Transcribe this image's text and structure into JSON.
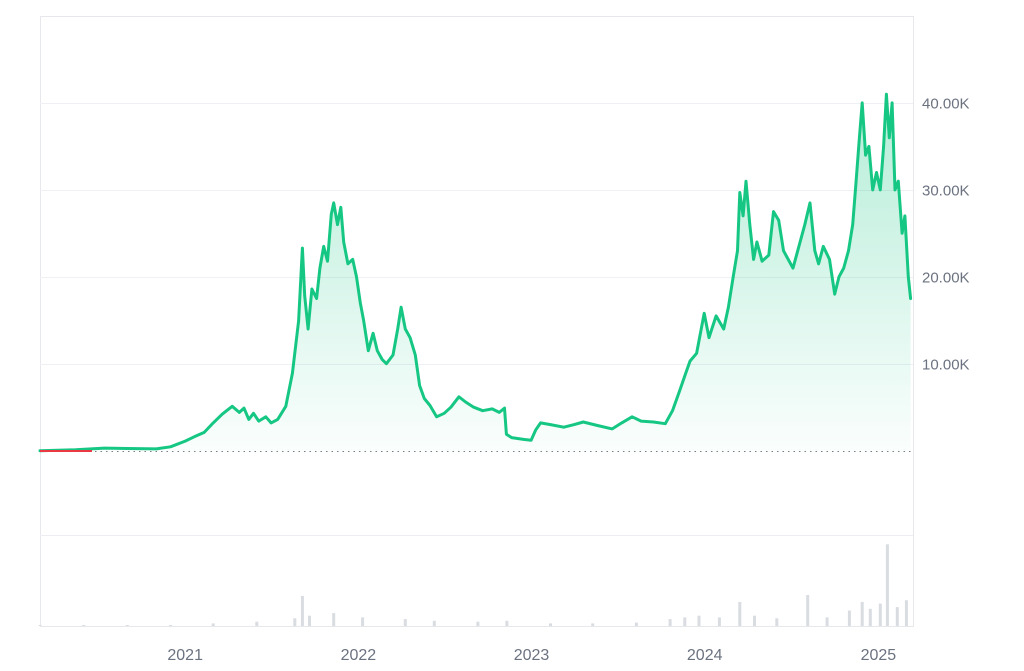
{
  "chart_data": {
    "type": "area",
    "title": "",
    "xlabel": "",
    "ylabel": "",
    "x_ticks": [
      "2021",
      "2022",
      "2023",
      "2024",
      "2025"
    ],
    "y_ticks": [
      "10.00K",
      "20.00K",
      "30.00K",
      "40.00K"
    ],
    "y_tick_values": [
      10000,
      20000,
      30000,
      40000
    ],
    "ylim": [
      -9700,
      50000
    ],
    "x_range": [
      "2020-03-01",
      "2025-03-15"
    ],
    "baseline_value": 0,
    "grid": "horizontal",
    "series": [
      {
        "type": "area",
        "color": "#16c784",
        "points": [
          [
            "2020-03-01",
            0
          ],
          [
            "2020-05-15",
            100
          ],
          [
            "2020-07-15",
            300
          ],
          [
            "2020-09-01",
            250
          ],
          [
            "2020-11-01",
            200
          ],
          [
            "2020-12-01",
            450
          ],
          [
            "2021-01-01",
            1100
          ],
          [
            "2021-01-20",
            1600
          ],
          [
            "2021-02-10",
            2100
          ],
          [
            "2021-03-01",
            3200
          ],
          [
            "2021-03-20",
            4200
          ],
          [
            "2021-04-10",
            5100
          ],
          [
            "2021-04-25",
            4400
          ],
          [
            "2021-05-05",
            4900
          ],
          [
            "2021-05-15",
            3600
          ],
          [
            "2021-05-25",
            4300
          ],
          [
            "2021-06-05",
            3400
          ],
          [
            "2021-06-20",
            3900
          ],
          [
            "2021-07-01",
            3200
          ],
          [
            "2021-07-15",
            3600
          ],
          [
            "2021-08-01",
            5100
          ],
          [
            "2021-08-15",
            8900
          ],
          [
            "2021-08-28",
            14900
          ],
          [
            "2021-09-05",
            23300
          ],
          [
            "2021-09-10",
            17800
          ],
          [
            "2021-09-17",
            14000
          ],
          [
            "2021-09-25",
            18600
          ],
          [
            "2021-10-05",
            17500
          ],
          [
            "2021-10-12",
            21000
          ],
          [
            "2021-10-20",
            23500
          ],
          [
            "2021-10-28",
            21800
          ],
          [
            "2021-11-05",
            27200
          ],
          [
            "2021-11-10",
            28500
          ],
          [
            "2021-11-18",
            26000
          ],
          [
            "2021-11-25",
            28000
          ],
          [
            "2021-12-01",
            24000
          ],
          [
            "2021-12-10",
            21500
          ],
          [
            "2021-12-20",
            22000
          ],
          [
            "2021-12-28",
            20000
          ],
          [
            "2022-01-05",
            17000
          ],
          [
            "2022-01-12",
            15000
          ],
          [
            "2022-01-22",
            11500
          ],
          [
            "2022-02-01",
            13500
          ],
          [
            "2022-02-10",
            11500
          ],
          [
            "2022-02-20",
            10500
          ],
          [
            "2022-03-01",
            10000
          ],
          [
            "2022-03-15",
            11000
          ],
          [
            "2022-03-25",
            14000
          ],
          [
            "2022-04-01",
            16500
          ],
          [
            "2022-04-10",
            14000
          ],
          [
            "2022-04-20",
            13000
          ],
          [
            "2022-05-01",
            11000
          ],
          [
            "2022-05-10",
            7500
          ],
          [
            "2022-05-20",
            6000
          ],
          [
            "2022-06-01",
            5200
          ],
          [
            "2022-06-15",
            3900
          ],
          [
            "2022-07-01",
            4300
          ],
          [
            "2022-07-15",
            5000
          ],
          [
            "2022-08-01",
            6200
          ],
          [
            "2022-08-15",
            5600
          ],
          [
            "2022-09-01",
            5000
          ],
          [
            "2022-09-20",
            4600
          ],
          [
            "2022-10-10",
            4800
          ],
          [
            "2022-10-25",
            4400
          ],
          [
            "2022-11-05",
            4900
          ],
          [
            "2022-11-09",
            1900
          ],
          [
            "2022-11-20",
            1500
          ],
          [
            "2022-12-15",
            1300
          ],
          [
            "2022-12-31",
            1200
          ],
          [
            "2023-01-10",
            2400
          ],
          [
            "2023-01-20",
            3200
          ],
          [
            "2023-02-10",
            3000
          ],
          [
            "2023-03-10",
            2700
          ],
          [
            "2023-04-01",
            3000
          ],
          [
            "2023-04-20",
            3300
          ],
          [
            "2023-05-20",
            2900
          ],
          [
            "2023-06-20",
            2500
          ],
          [
            "2023-07-10",
            3200
          ],
          [
            "2023-08-01",
            3900
          ],
          [
            "2023-08-20",
            3400
          ],
          [
            "2023-09-15",
            3300
          ],
          [
            "2023-10-10",
            3100
          ],
          [
            "2023-10-25",
            4600
          ],
          [
            "2023-11-10",
            7000
          ],
          [
            "2023-11-20",
            8600
          ],
          [
            "2023-12-01",
            10300
          ],
          [
            "2023-12-15",
            11200
          ],
          [
            "2023-12-31",
            15800
          ],
          [
            "2024-01-10",
            13000
          ],
          [
            "2024-01-25",
            15500
          ],
          [
            "2024-02-10",
            14000
          ],
          [
            "2024-02-20",
            16500
          ],
          [
            "2024-03-01",
            20000
          ],
          [
            "2024-03-10",
            23000
          ],
          [
            "2024-03-15",
            29700
          ],
          [
            "2024-03-22",
            27000
          ],
          [
            "2024-03-28",
            31000
          ],
          [
            "2024-04-05",
            26000
          ],
          [
            "2024-04-13",
            22000
          ],
          [
            "2024-04-20",
            24000
          ],
          [
            "2024-05-01",
            21800
          ],
          [
            "2024-05-15",
            22500
          ],
          [
            "2024-05-25",
            27500
          ],
          [
            "2024-06-05",
            26500
          ],
          [
            "2024-06-15",
            23000
          ],
          [
            "2024-06-25",
            22000
          ],
          [
            "2024-07-05",
            21000
          ],
          [
            "2024-07-20",
            24000
          ],
          [
            "2024-07-30",
            26000
          ],
          [
            "2024-08-10",
            28500
          ],
          [
            "2024-08-20",
            23000
          ],
          [
            "2024-08-28",
            21500
          ],
          [
            "2024-09-07",
            23500
          ],
          [
            "2024-09-20",
            22000
          ],
          [
            "2024-10-01",
            18000
          ],
          [
            "2024-10-10",
            20000
          ],
          [
            "2024-10-20",
            21000
          ],
          [
            "2024-10-30",
            23000
          ],
          [
            "2024-11-08",
            26000
          ],
          [
            "2024-11-15",
            31000
          ],
          [
            "2024-11-22",
            36000
          ],
          [
            "2024-11-28",
            40000
          ],
          [
            "2024-12-05",
            34000
          ],
          [
            "2024-12-12",
            35000
          ],
          [
            "2024-12-20",
            30000
          ],
          [
            "2024-12-28",
            32000
          ],
          [
            "2025-01-05",
            30000
          ],
          [
            "2025-01-12",
            35000
          ],
          [
            "2025-01-18",
            41000
          ],
          [
            "2025-01-24",
            36000
          ],
          [
            "2025-01-30",
            40000
          ],
          [
            "2025-02-05",
            30000
          ],
          [
            "2025-02-12",
            31000
          ],
          [
            "2025-02-20",
            25000
          ],
          [
            "2025-02-26",
            27000
          ],
          [
            "2025-03-05",
            20000
          ],
          [
            "2025-03-10",
            17500
          ]
        ]
      }
    ],
    "volume_x": [
      "2020-03-01",
      "2020-06-01",
      "2020-09-01",
      "2020-12-01",
      "2021-03-01",
      "2021-06-01",
      "2021-08-20",
      "2021-09-05",
      "2021-09-20",
      "2021-11-10",
      "2022-01-10",
      "2022-04-10",
      "2022-06-10",
      "2022-09-10",
      "2022-11-10",
      "2023-02-10",
      "2023-05-10",
      "2023-08-10",
      "2023-10-20",
      "2023-11-20",
      "2023-12-20",
      "2024-02-01",
      "2024-03-15",
      "2024-04-15",
      "2024-06-01",
      "2024-08-05",
      "2024-09-15",
      "2024-11-01",
      "2024-11-28",
      "2024-12-15",
      "2025-01-05",
      "2025-01-20",
      "2025-02-10",
      "2025-03-01"
    ],
    "volume_values": [
      1,
      1,
      1,
      1,
      3,
      5,
      9,
      35,
      12,
      15,
      10,
      8,
      6,
      5,
      6,
      3,
      3,
      4,
      8,
      10,
      12,
      10,
      28,
      12,
      9,
      36,
      10,
      18,
      28,
      20,
      26,
      95,
      22,
      30
    ],
    "volume_ylim": [
      0,
      100
    ]
  }
}
